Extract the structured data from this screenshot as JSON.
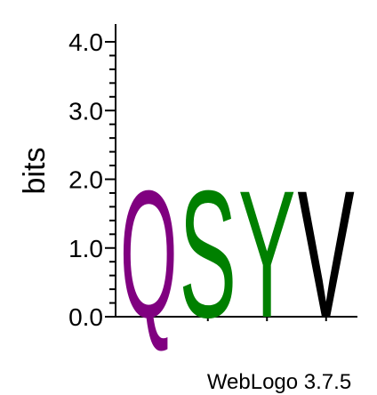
{
  "chart_data": {
    "type": "sequence-logo",
    "ylabel": "bits",
    "ylim": [
      0.0,
      4.0
    ],
    "y_ticks": [
      "0.0",
      "1.0",
      "2.0",
      "3.0",
      "4.0"
    ],
    "positions": [
      {
        "letter": "Q",
        "bits": 1.9,
        "color": "#800080"
      },
      {
        "letter": "S",
        "bits": 1.9,
        "color": "#008000"
      },
      {
        "letter": "Y",
        "bits": 1.9,
        "color": "#008000"
      },
      {
        "letter": "V",
        "bits": 1.9,
        "color": "#000000"
      }
    ],
    "footer": "WebLogo 3.7.5"
  }
}
